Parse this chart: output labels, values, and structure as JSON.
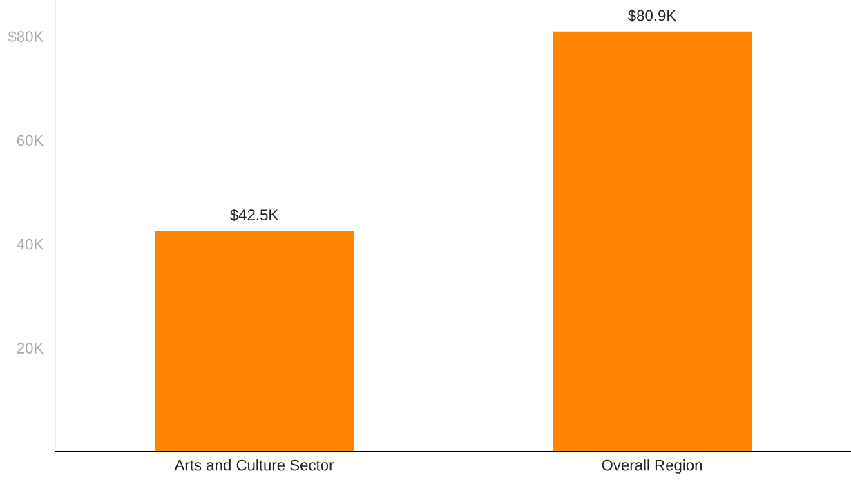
{
  "chart_data": {
    "type": "bar",
    "categories": [
      "Arts and Culture Sector",
      "Overall Region"
    ],
    "values": [
      42500,
      80900
    ],
    "value_labels": [
      "$42.5K",
      "$80.9K"
    ],
    "color": "#ff8502",
    "ylim": [
      0,
      87000
    ],
    "yticks": [
      {
        "value": 20000,
        "label": "20K"
      },
      {
        "value": 40000,
        "label": "40K"
      },
      {
        "value": 60000,
        "label": "60K"
      },
      {
        "value": 80000,
        "label": "$80K"
      }
    ],
    "grid": false,
    "legend": false
  }
}
